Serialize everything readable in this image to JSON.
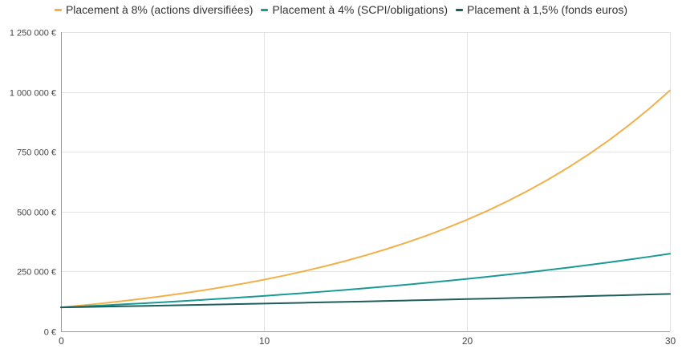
{
  "chart_data": {
    "type": "line",
    "title": "",
    "xlabel": "",
    "ylabel": "",
    "xlim": [
      0,
      30
    ],
    "ylim": [
      0,
      1250000
    ],
    "grid": true,
    "legend_position": "top",
    "x_ticks": [
      0,
      10,
      20,
      30
    ],
    "x_tick_labels": [
      "0",
      "10",
      "20",
      "30"
    ],
    "y_ticks": [
      0,
      250000,
      500000,
      750000,
      1000000,
      1250000
    ],
    "y_tick_labels": [
      "0 €",
      "250 000 €",
      "500 000 €",
      "750 000 €",
      "1 000 000 €",
      "1 250 000 €"
    ],
    "x": [
      0,
      1,
      2,
      3,
      4,
      5,
      6,
      7,
      8,
      9,
      10,
      11,
      12,
      13,
      14,
      15,
      16,
      17,
      18,
      19,
      20,
      21,
      22,
      23,
      24,
      25,
      26,
      27,
      28,
      29,
      30
    ],
    "series": [
      {
        "name": "Placement à 8% (actions diversifiées)",
        "color": "#F2B04A",
        "values": [
          100000,
          108000,
          116640,
          125971,
          136049,
          146933,
          158687,
          171382,
          185093,
          199900,
          215892,
          233164,
          251817,
          271962,
          293719,
          317217,
          342594,
          370002,
          399602,
          431570,
          466096,
          503383,
          543654,
          587146,
          634118,
          684848,
          739635,
          798806,
          862711,
          931727,
          1006266
        ]
      },
      {
        "name": "Placement à 4% (SCPI/obligations)",
        "color": "#1A9A94",
        "values": [
          100000,
          104000,
          108160,
          112486,
          116986,
          121665,
          126532,
          131593,
          136857,
          142331,
          148024,
          153945,
          160103,
          166507,
          173168,
          180094,
          187298,
          194790,
          202582,
          210685,
          219112,
          227877,
          236992,
          246472,
          256330,
          266584,
          277247,
          288337,
          299870,
          311865,
          324340
        ]
      },
      {
        "name": "Placement à 1,5% (fonds euros)",
        "color": "#1E5E5B",
        "values": [
          100000,
          101500,
          103023,
          104568,
          106136,
          107728,
          109344,
          110984,
          112649,
          114339,
          116054,
          117795,
          119562,
          121355,
          123176,
          125023,
          126899,
          128802,
          130734,
          132695,
          134686,
          136706,
          138756,
          140838,
          142950,
          145095,
          147271,
          149480,
          151722,
          153998,
          156308
        ]
      }
    ]
  }
}
